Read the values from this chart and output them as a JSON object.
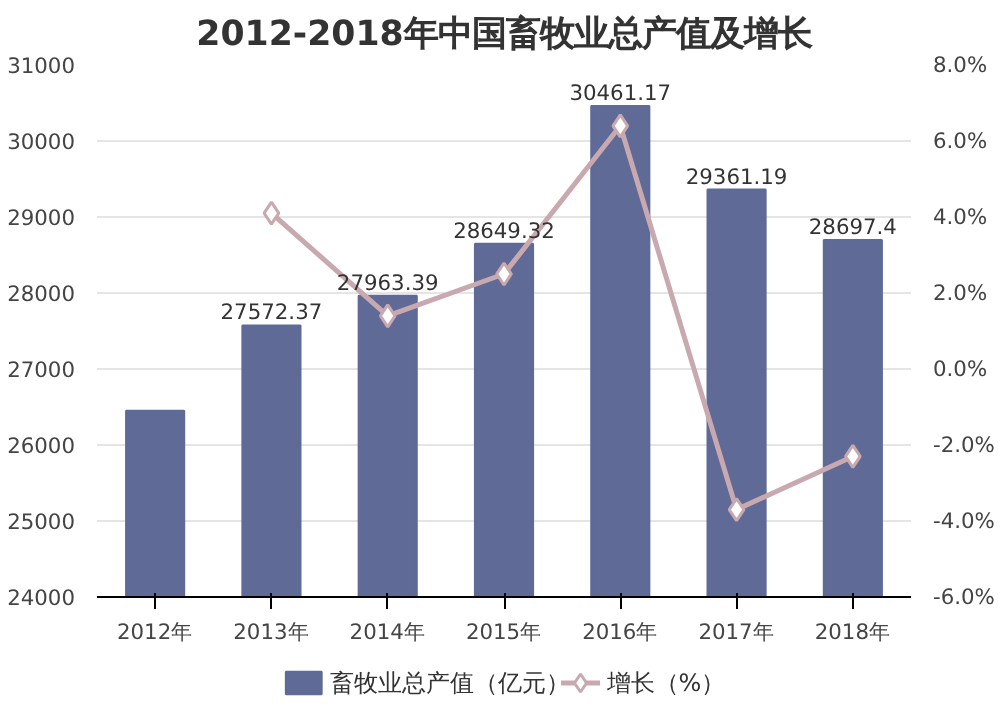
{
  "chart_data": {
    "type": "bar",
    "title": "2012-2018年中国畜牧业总产值及增长",
    "categories": [
      "2012年",
      "2013年",
      "2014年",
      "2015年",
      "2016年",
      "2017年",
      "2018年"
    ],
    "series": [
      {
        "name": "畜牧业总产值（亿元）",
        "color": "#5f6a96",
        "values": [
          26450,
          27572.37,
          27963.39,
          28649.32,
          30461.17,
          29361.19,
          28697.4
        ],
        "value_labels": [
          null,
          "27572.37",
          "27963.39",
          "28649.32",
          "30461.17",
          "29361.19",
          "28697.4"
        ]
      },
      {
        "name": "增长（%）",
        "type": "line",
        "axis": "y2",
        "color": "#c9a9b0",
        "marker": "diamond",
        "values": [
          null,
          4.1,
          1.4,
          2.5,
          6.4,
          -3.7,
          -2.3
        ]
      }
    ],
    "ylim": [
      24000,
      31000
    ],
    "yticks": [
      24000,
      25000,
      26000,
      27000,
      28000,
      29000,
      30000,
      31000
    ],
    "y2lim": [
      -6,
      8
    ],
    "y2ticks": [
      {
        "value": -6,
        "label": "-6.0%"
      },
      {
        "value": -4,
        "label": "-4.0%"
      },
      {
        "value": -2,
        "label": "-2.0%"
      },
      {
        "value": 0,
        "label": "0.0%"
      },
      {
        "value": 2,
        "label": "2.0%"
      },
      {
        "value": 4,
        "label": "4.0%"
      },
      {
        "value": 6,
        "label": "6.0%"
      },
      {
        "value": 8,
        "label": "8.0%"
      }
    ],
    "grid": "y",
    "legend": "bottom"
  }
}
